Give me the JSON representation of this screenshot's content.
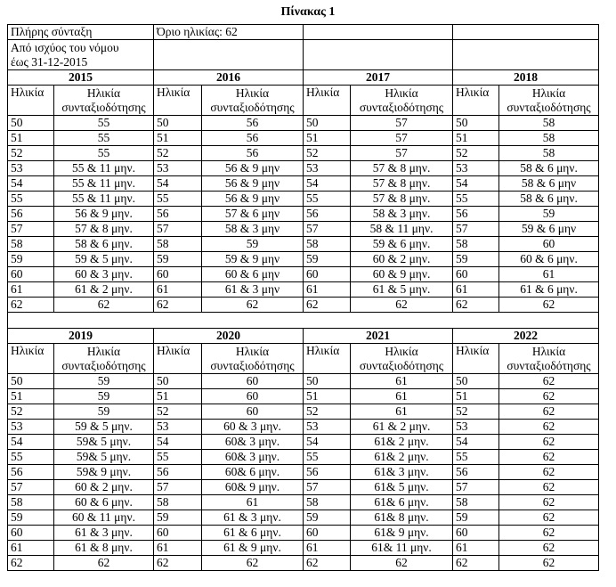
{
  "title": "Πίνακας 1",
  "intro": {
    "label": "Πλήρης σύνταξη",
    "limit": "Όριο ηλικίας: 62",
    "period": [
      "Από ισχύος  του νόμου",
      "έως 31-12-2015"
    ]
  },
  "headers": {
    "age": "Ηλικία",
    "retirement": [
      "Ηλικία",
      "συνταξιοδότησης"
    ]
  },
  "blocks": [
    {
      "groups": [
        {
          "year": "2015",
          "ages": [
            "50",
            "51",
            "52",
            "53",
            "54",
            "55",
            "56",
            "57",
            "58",
            "59",
            "60",
            "61",
            "62"
          ],
          "values": [
            "55",
            "55",
            "55",
            "55 & 11 μην.",
            "55 & 11 μην.",
            "55 & 11 μην.",
            "56 & 9 μην.",
            "57 & 8 μην.",
            "58 & 6 μην.",
            "59 & 5 μην.",
            "60 & 3 μην.",
            "61 & 2 μην.",
            "62"
          ]
        },
        {
          "year": "2016",
          "ages": [
            "50",
            "51",
            "52",
            "53",
            "54",
            "55",
            "56",
            "57",
            "58",
            "59",
            "60",
            "61",
            "62"
          ],
          "values": [
            "56",
            "56",
            "56",
            "56 & 9 μην",
            "56 & 9 μην",
            "56 & 9 μην",
            "57 & 6 μην",
            "58 & 3 μην",
            "59",
            "59 & 9 μην",
            "60 & 6 μην",
            "61 & 3 μην",
            "62"
          ]
        },
        {
          "year": "2017",
          "ages": [
            "50",
            "51",
            "52",
            "53",
            "54",
            "55",
            "56",
            "57",
            "58",
            "59",
            "60",
            "61",
            "62"
          ],
          "values": [
            "57",
            "57",
            "57",
            "57 & 8 μην.",
            "57 & 8 μην.",
            "57 & 8 μην.",
            "58 & 3 μην.",
            "58 & 11 μην.",
            "59 & 6 μην.",
            "60 & 2 μην.",
            "60 & 9 μην.",
            "61 & 5 μην.",
            "62"
          ]
        },
        {
          "year": "2018",
          "ages": [
            "50",
            "51",
            "52",
            "53",
            "54",
            "55",
            "56",
            "57",
            "58",
            "59",
            "60",
            "61",
            "62"
          ],
          "values": [
            "58",
            "58",
            "58",
            "58 & 6 μην.",
            "58 & 6 μην",
            "58 & 6 μην.",
            "59",
            "59 & 6 μην",
            "60",
            "60 & 6 μην.",
            "61",
            "61 & 6 μην.",
            "62"
          ]
        }
      ]
    },
    {
      "groups": [
        {
          "year": "2019",
          "ages": [
            "50",
            "51",
            "52",
            "53",
            "54",
            "55",
            "56",
            "57",
            "58",
            "59",
            "60",
            "61",
            "62"
          ],
          "values": [
            "59",
            "59",
            "59",
            "59 & 5 μην.",
            "59& 5 μην.",
            "59& 5 μην.",
            "59& 9 μην.",
            "60 & 2 μην.",
            "60 & 6 μην.",
            "60 & 11 μην.",
            "61 & 3 μην.",
            "61 & 8 μην.",
            "62"
          ]
        },
        {
          "year": "2020",
          "ages": [
            "50",
            "51",
            "52",
            "53",
            "54",
            "55",
            "56",
            "57",
            "58",
            "59",
            "60",
            "61",
            "62"
          ],
          "values": [
            "60",
            "60",
            "60",
            "60 & 3 μην.",
            "60& 3 μην.",
            "60& 3 μην.",
            "60& 6 μην.",
            "60& 9 μην.",
            "61",
            "61 & 3 μην.",
            "61 & 6 μην.",
            "61 & 9 μην.",
            "62"
          ]
        },
        {
          "year": "2021",
          "ages": [
            "50",
            "51",
            "52",
            "53",
            "54",
            "55",
            "56",
            "57",
            "58",
            "59",
            "60",
            "61",
            "62"
          ],
          "values": [
            "61",
            "61",
            "61",
            "61 & 2 μην.",
            "61& 2 μην.",
            "61& 2 μην.",
            "61& 3 μην.",
            "61& 5 μην.",
            "61& 6 μην.",
            "61& 8 μην.",
            "61& 9 μην.",
            "61& 11 μην.",
            "62"
          ]
        },
        {
          "year": "2022",
          "ages": [
            "50",
            "51",
            "52",
            "53",
            "54",
            "55",
            "56",
            "57",
            "58",
            "59",
            "60",
            "61",
            "62"
          ],
          "values": [
            "62",
            "62",
            "62",
            "62",
            "62",
            "62",
            "62",
            "62",
            "62",
            "62",
            "62",
            "62",
            "62"
          ]
        }
      ]
    }
  ]
}
